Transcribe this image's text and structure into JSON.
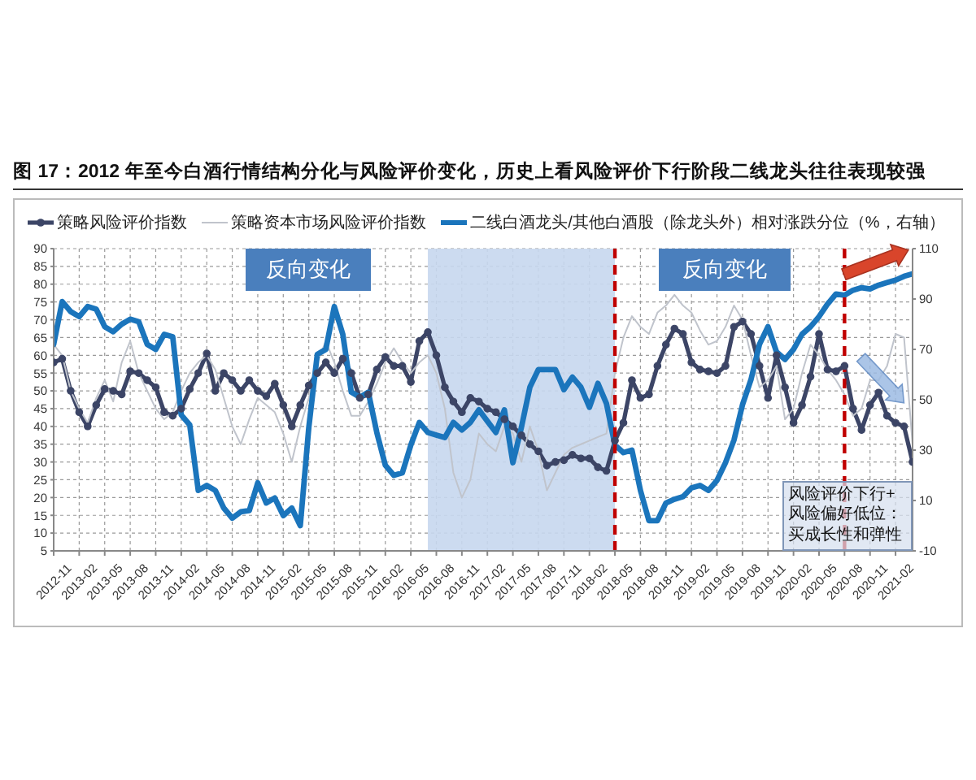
{
  "chart_data": {
    "type": "line",
    "title": "图 17：2012 年至今白酒行情结构分化与风险评价变化，历史上看风险评价下行阶段二线龙头往往表现较强",
    "x": [
      "2012-11",
      "2012-12",
      "2013-01",
      "2013-02",
      "2013-03",
      "2013-04",
      "2013-05",
      "2013-06",
      "2013-07",
      "2013-08",
      "2013-09",
      "2013-10",
      "2013-11",
      "2013-12",
      "2014-01",
      "2014-02",
      "2014-03",
      "2014-04",
      "2014-05",
      "2014-06",
      "2014-07",
      "2014-08",
      "2014-09",
      "2014-10",
      "2014-11",
      "2014-12",
      "2015-01",
      "2015-02",
      "2015-03",
      "2015-04",
      "2015-05",
      "2015-06",
      "2015-07",
      "2015-08",
      "2015-09",
      "2015-10",
      "2015-11",
      "2015-12",
      "2016-01",
      "2016-02",
      "2016-03",
      "2016-04",
      "2016-05",
      "2016-06",
      "2016-07",
      "2016-08",
      "2016-09",
      "2016-10",
      "2016-11",
      "2016-12",
      "2017-01",
      "2017-02",
      "2017-03",
      "2017-04",
      "2017-05",
      "2017-06",
      "2017-07",
      "2017-08",
      "2017-09",
      "2017-10",
      "2017-11",
      "2017-12",
      "2018-01",
      "2018-02",
      "2018-03",
      "2018-04",
      "2018-05",
      "2018-06",
      "2018-07",
      "2018-08",
      "2018-09",
      "2018-10",
      "2018-11",
      "2018-12",
      "2019-01",
      "2019-02",
      "2019-03",
      "2019-04",
      "2019-05",
      "2019-06",
      "2019-07",
      "2019-08",
      "2019-09",
      "2019-10",
      "2019-11",
      "2019-12",
      "2020-01",
      "2020-02",
      "2020-03",
      "2020-04",
      "2020-05",
      "2020-06",
      "2020-07",
      "2020-08",
      "2020-09",
      "2020-10",
      "2020-11",
      "2020-12",
      "2021-01",
      "2021-02",
      "2021-03",
      "2021-04"
    ],
    "xlim": [
      "2012-11",
      "2021-04"
    ],
    "xticks": [
      "2012-11",
      "2013-02",
      "2013-05",
      "2013-08",
      "2013-11",
      "2014-02",
      "2014-05",
      "2014-08",
      "2014-11",
      "2015-02",
      "2015-05",
      "2015-08",
      "2015-11",
      "2016-02",
      "2016-05",
      "2016-08",
      "2016-11",
      "2017-02",
      "2017-05",
      "2017-08",
      "2017-11",
      "2018-02",
      "2018-05",
      "2018-08",
      "2018-11",
      "2019-02",
      "2019-05",
      "2019-08",
      "2019-11",
      "2020-02",
      "2020-05",
      "2020-08",
      "2020-11",
      "2021-02"
    ],
    "ylim": [
      5,
      90
    ],
    "yticks": [
      5,
      10,
      15,
      20,
      25,
      30,
      35,
      40,
      45,
      50,
      55,
      60,
      65,
      70,
      75,
      80,
      85,
      90
    ],
    "y2lim": [
      -10,
      110
    ],
    "y2ticks": [
      -10,
      10,
      30,
      50,
      70,
      90,
      110
    ],
    "series": [
      {
        "name": "策略风险评价指数",
        "color": "#3c4566",
        "marker": "circle",
        "values": [
          58,
          59,
          50,
          44,
          40,
          46,
          50.5,
          50,
          49,
          55.5,
          55,
          53,
          51,
          44,
          43,
          45,
          50.5,
          55,
          60.5,
          50,
          55,
          53,
          50,
          53,
          50,
          48.5,
          52,
          46,
          40,
          46,
          51.5,
          55,
          58,
          55,
          59,
          55,
          48,
          49,
          56,
          59.5,
          57,
          57,
          52.5,
          64,
          66.5,
          60,
          51,
          47,
          44,
          48,
          47,
          45,
          44,
          42,
          40,
          37.5,
          35,
          33,
          29,
          30,
          30.5,
          32,
          31,
          31,
          28.5,
          27.5,
          36,
          41,
          53,
          48,
          49,
          57,
          63,
          67.5,
          66,
          58,
          56,
          55.5,
          55,
          57,
          68,
          69.5,
          66,
          57,
          48,
          60,
          51,
          41,
          46,
          54,
          66,
          56,
          55.5,
          57,
          45,
          39,
          46,
          49.5,
          43,
          41,
          40,
          30
        ]
      },
      {
        "name": "策略资本市场风险评价指数",
        "color": "#c0c4cc",
        "values": [
          63,
          60,
          50,
          45,
          41,
          48,
          53,
          47,
          58,
          64,
          55,
          50,
          45,
          42,
          44,
          50,
          55,
          58,
          60,
          56,
          48,
          40,
          35,
          42,
          48,
          46,
          44,
          38,
          30,
          40,
          48,
          58,
          64,
          58,
          50,
          43,
          43,
          47,
          52,
          58,
          62,
          58,
          55,
          58,
          60,
          55,
          45,
          27,
          20,
          25,
          38,
          35,
          33,
          40,
          38,
          30,
          40,
          33,
          22,
          27,
          32,
          34,
          35,
          36,
          37,
          38,
          55,
          65,
          71,
          68,
          66,
          72,
          74,
          77,
          74,
          72,
          67,
          63,
          64,
          68,
          74,
          70,
          60,
          51,
          53,
          57,
          42,
          45,
          55,
          63,
          60,
          56,
          53,
          49,
          43,
          45,
          53,
          53,
          57,
          66,
          65,
          35
        ]
      },
      {
        "name": "二线白酒龙头/其他白酒股（除龙头外）相对涨跌分位（%，右轴）",
        "color": "#1b75bc",
        "axis": "y2",
        "values": [
          72,
          89,
          85,
          83,
          87,
          86,
          79,
          77,
          80,
          82,
          81,
          72,
          70,
          76,
          75,
          44,
          40,
          14,
          16,
          14,
          7,
          3,
          5.5,
          6,
          17,
          9,
          11,
          4,
          7,
          0,
          39,
          68,
          70,
          87,
          76,
          53,
          51,
          53,
          37,
          24,
          20,
          21,
          32,
          41,
          37,
          36,
          35,
          41,
          38,
          41,
          46,
          41.5,
          37,
          46,
          25,
          39,
          55,
          62,
          62,
          62,
          54,
          59,
          55,
          47,
          56.5,
          48.5,
          32,
          29,
          30,
          14,
          2,
          2,
          9,
          10.5,
          11.5,
          15,
          16,
          14,
          18,
          25,
          34,
          48,
          58,
          72,
          79,
          69,
          66,
          70,
          76,
          79,
          83,
          88,
          92,
          91.5,
          93.5,
          94.5,
          94,
          95.5,
          96.5,
          97.5,
          99,
          100
        ]
      }
    ],
    "bands": [
      {
        "axis": "x",
        "from": "2016-07",
        "to": "2018-05",
        "color": "#c6d7ee"
      }
    ],
    "ref_lines": [
      {
        "axis": "x",
        "value": "2018-05",
        "color": "#c00000",
        "line_style": "dashed"
      },
      {
        "axis": "x",
        "value": "2020-08",
        "color": "#c00000",
        "line_style": "dashed"
      }
    ],
    "annotations": [
      "反向变化",
      "反向变化",
      "风险评价下行+风险偏好低位：买成长性和弹性"
    ],
    "grid": true,
    "legend": "top"
  }
}
